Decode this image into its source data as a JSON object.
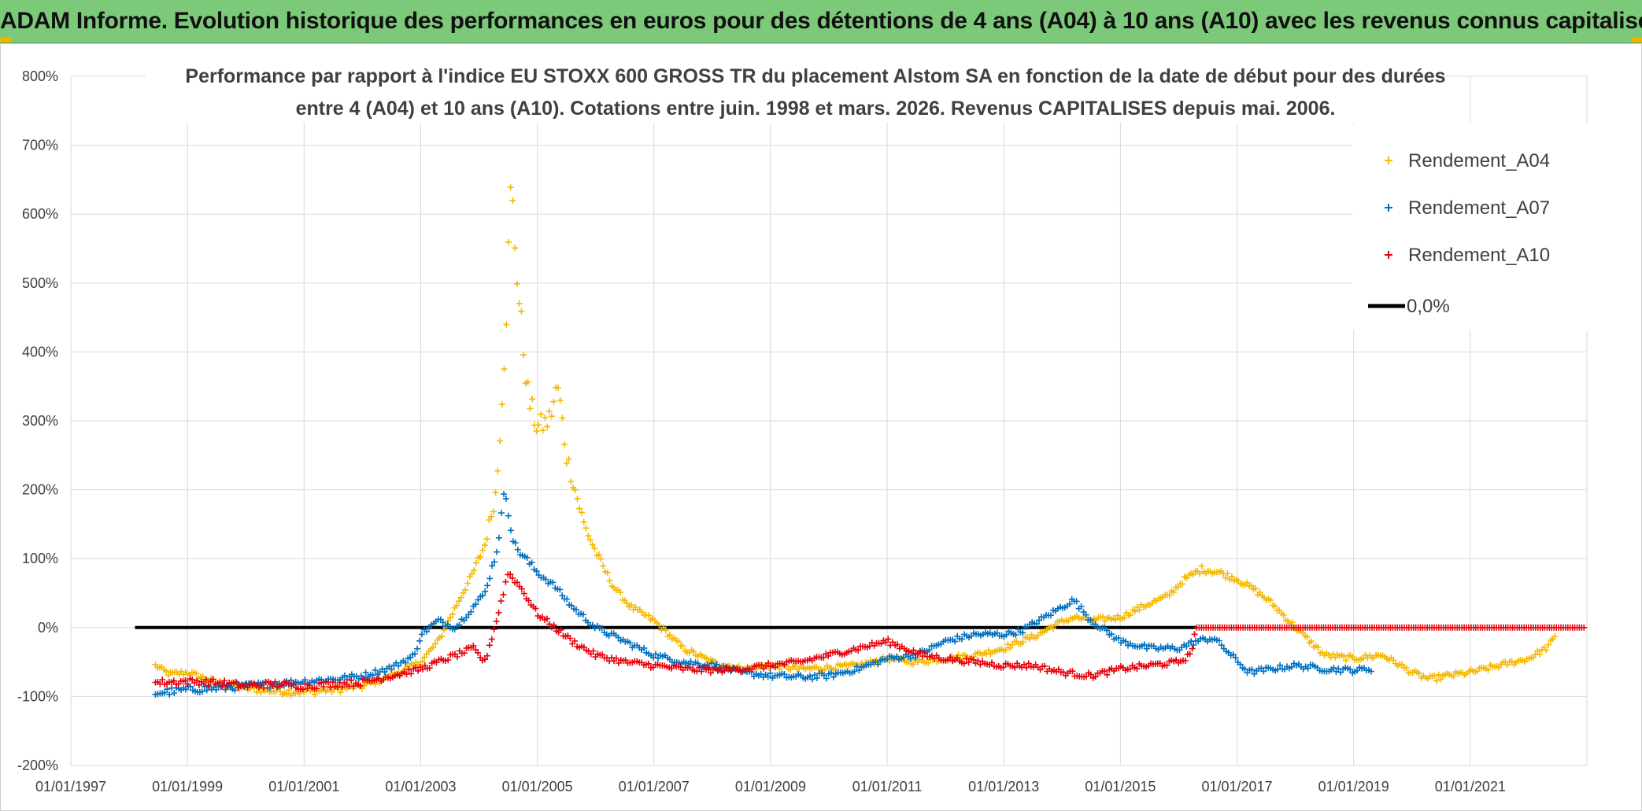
{
  "header": {
    "title": "ADAM Informe. Evolution historique des performances en euros pour des détentions de 4 ans (A04) à 10 ans (A10) avec les revenus connus capitalisés"
  },
  "colors": {
    "banner": "#7dc97a",
    "a04": "#f5b800",
    "a07": "#0070c0",
    "a10": "#e8000b",
    "zero": "#000000",
    "grid": "#d9d9d9"
  },
  "chart_data": {
    "type": "scatter",
    "title_line1": "Performance par rapport à l'indice EU STOXX 600 GROSS TR  du placement Alstom SA en fonction de la date de début pour des durées",
    "title_line2": "entre 4 (A04) et 10 ans (A10). Cotations entre juin. 1998 et mars. 2026. Revenus CAPITALISES depuis mai. 2006.",
    "xlabel": "",
    "ylabel": "",
    "xlim": [
      1997.0,
      2023.0
    ],
    "ylim": [
      -200,
      800
    ],
    "y_ticks": [
      "800%",
      "700%",
      "600%",
      "500%",
      "400%",
      "300%",
      "200%",
      "100%",
      "0%",
      "-100%",
      "-200%"
    ],
    "y_tick_values": [
      800,
      700,
      600,
      500,
      400,
      300,
      200,
      100,
      0,
      -100,
      -200
    ],
    "x_ticks": [
      "01/01/1997",
      "01/01/1999",
      "01/01/2001",
      "01/01/2003",
      "01/01/2005",
      "01/01/2007",
      "01/01/2009",
      "01/01/2011",
      "01/01/2013",
      "01/01/2015",
      "01/01/2017",
      "01/01/2019",
      "01/01/2021"
    ],
    "x_tick_values": [
      1997,
      1999,
      2001,
      2003,
      2005,
      2007,
      2009,
      2011,
      2013,
      2015,
      2017,
      2019,
      2021
    ],
    "legend_position": "top-right",
    "series": [
      {
        "name": "Rendement_A04",
        "x": [
          1998.45,
          1998.7,
          1999.0,
          1999.5,
          2000.0,
          2000.5,
          2001.0,
          2001.5,
          2002.0,
          2002.5,
          2003.0,
          2003.3,
          2003.6,
          2003.9,
          2004.1,
          2004.3,
          2004.45,
          2004.55,
          2004.7,
          2004.85,
          2005.0,
          2005.2,
          2005.35,
          2005.5,
          2005.65,
          2005.8,
          2006.0,
          2006.3,
          2006.6,
          2007.0,
          2007.5,
          2008.0,
          2008.5,
          2009.0,
          2009.5,
          2010.0,
          2010.5,
          2011.0,
          2011.5,
          2012.0,
          2012.5,
          2013.0,
          2013.3,
          2013.6,
          2013.9,
          2014.2,
          2014.5,
          2015.0,
          2015.5,
          2015.8,
          2016.1,
          2016.4,
          2016.7,
          2017.0,
          2017.3,
          2017.6,
          2018.0,
          2018.5,
          2019.0,
          2019.5,
          2019.8,
          2020.0,
          2020.3,
          2020.6,
          2021.0,
          2021.5,
          2022.0,
          2022.3,
          2022.45
        ],
        "y": [
          -55,
          -68,
          -65,
          -80,
          -88,
          -92,
          -93,
          -90,
          -85,
          -70,
          -50,
          -20,
          30,
          80,
          120,
          200,
          420,
          640,
          460,
          330,
          290,
          300,
          350,
          250,
          200,
          150,
          110,
          60,
          30,
          10,
          -30,
          -50,
          -60,
          -55,
          -60,
          -58,
          -55,
          -45,
          -50,
          -45,
          -40,
          -30,
          -20,
          -10,
          5,
          15,
          10,
          15,
          35,
          45,
          70,
          85,
          80,
          70,
          55,
          35,
          0,
          -40,
          -45,
          -40,
          -55,
          -65,
          -75,
          -70,
          -65,
          -55,
          -45,
          -30,
          -15
        ]
      },
      {
        "name": "Rendement_A07",
        "x": [
          1998.45,
          1999.0,
          1999.5,
          2000.0,
          2000.5,
          2001.0,
          2001.5,
          2002.0,
          2002.5,
          2002.9,
          2003.0,
          2003.3,
          2003.6,
          2003.9,
          2004.1,
          2004.3,
          2004.45,
          2004.6,
          2004.8,
          2005.0,
          2005.3,
          2005.6,
          2006.0,
          2006.5,
          2007.0,
          2007.5,
          2008.0,
          2008.5,
          2009.0,
          2009.5,
          2010.0,
          2010.5,
          2011.0,
          2011.5,
          2012.0,
          2012.5,
          2013.0,
          2013.3,
          2013.6,
          2013.9,
          2014.2,
          2014.5,
          2015.0,
          2015.5,
          2016.0,
          2016.3,
          2016.6,
          2016.9,
          2017.2,
          2017.6,
          2018.0,
          2018.5,
          2019.0,
          2019.3
        ],
        "y": [
          -95,
          -90,
          -88,
          -85,
          -82,
          -78,
          -75,
          -70,
          -58,
          -40,
          -10,
          10,
          0,
          30,
          50,
          110,
          200,
          120,
          100,
          80,
          60,
          30,
          0,
          -20,
          -40,
          -50,
          -55,
          -65,
          -70,
          -72,
          -70,
          -60,
          -45,
          -40,
          -20,
          -10,
          -10,
          -5,
          10,
          25,
          40,
          10,
          -20,
          -30,
          -30,
          -20,
          -15,
          -40,
          -65,
          -60,
          -55,
          -60,
          -62,
          -60
        ]
      },
      {
        "name": "Rendement_A10",
        "x": [
          1998.45,
          1999.0,
          1999.5,
          2000.0,
          2000.5,
          2001.0,
          2001.5,
          2002.0,
          2002.5,
          2003.0,
          2003.3,
          2003.6,
          2003.9,
          2004.1,
          2004.3,
          2004.5,
          2004.7,
          2005.0,
          2005.3,
          2005.6,
          2006.0,
          2006.5,
          2007.0,
          2007.5,
          2008.0,
          2008.5,
          2009.0,
          2009.5,
          2010.0,
          2010.5,
          2011.0,
          2011.3,
          2011.6,
          2012.0,
          2012.5,
          2013.0,
          2013.5,
          2014.0,
          2014.5,
          2015.0,
          2015.5,
          2016.0,
          2016.2,
          2016.3,
          2017.0,
          2018.0,
          2019.0,
          2020.0,
          2021.0,
          2022.0,
          2022.95
        ],
        "y": [
          -80,
          -78,
          -80,
          -85,
          -82,
          -85,
          -82,
          -80,
          -70,
          -60,
          -50,
          -40,
          -30,
          -50,
          10,
          80,
          60,
          20,
          0,
          -20,
          -40,
          -50,
          -55,
          -60,
          -62,
          -60,
          -55,
          -50,
          -40,
          -30,
          -20,
          -30,
          -40,
          -45,
          -50,
          -55,
          -55,
          -65,
          -70,
          -60,
          -55,
          -50,
          -40,
          0,
          0,
          0,
          0,
          0,
          0,
          0,
          0
        ]
      },
      {
        "name": "0,0%",
        "x": [
          1998.1,
          2016.3
        ],
        "y": [
          0,
          0
        ]
      }
    ]
  }
}
